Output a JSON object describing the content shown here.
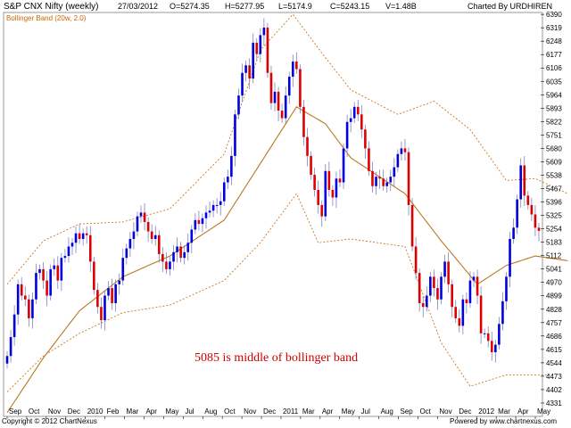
{
  "header": {
    "symbol": "S&P CNX Nifty (weekly)",
    "date": "27/03/2012",
    "open": "O=5274.35",
    "high": "H=5277.95",
    "low": "L=5174.9",
    "close": "C=5243.15",
    "volume": "V=1.48B",
    "charted_by": "Charted By URDHIREN"
  },
  "legend": {
    "label": "Bollinger Band (20w, 2.0)"
  },
  "annotation": "5085 is middle of bollinger band",
  "footer": {
    "copyright": "Copyright © 2012 ChartNexus",
    "powered": "Powered by www.chartnexus.com"
  },
  "colors": {
    "up": "#0000dd",
    "down": "#dd0000",
    "band": "#cc7722",
    "middle": "#bb7722",
    "annotation": "#d00000"
  },
  "chart_data": {
    "type": "candlestick",
    "ylim": [
      4260,
      6400
    ],
    "yticks": [
      4331,
      4402,
      4473,
      4544,
      4615,
      4686,
      4757,
      4828,
      4899,
      4970,
      5041,
      5112,
      5183,
      5254,
      5325,
      5396,
      5467,
      5538,
      5609,
      5680,
      5751,
      5822,
      5893,
      5964,
      6035,
      6106,
      6177,
      6248,
      6319,
      6390
    ],
    "xticks": [
      "Sep",
      "Oct",
      "Nov",
      "Dec",
      "2010",
      "Feb",
      "Mar",
      "Apr",
      "May",
      "Jul",
      "Aug",
      "Oct",
      "Nov",
      "Dec",
      "2011",
      "Mar",
      "Apr",
      "May",
      "Jul",
      "Aug",
      "Sep",
      "Oct",
      "Nov",
      "Dec",
      "2012",
      "Mar",
      "Apr",
      "May"
    ],
    "close_approx": [
      4580,
      4680,
      4800,
      4960,
      4900,
      4880,
      4780,
      4880,
      5020,
      5040,
      4980,
      4900,
      5040,
      5060,
      4980,
      5100,
      5110,
      5160,
      5180,
      5230,
      5200,
      5230,
      5220,
      5080,
      4930,
      4840,
      4770,
      4900,
      4940,
      4860,
      4960,
      4980,
      5100,
      5150,
      5200,
      5240,
      5320,
      5340,
      5290,
      5240,
      5200,
      5220,
      5120,
      5080,
      5040,
      5080,
      5130,
      5160,
      5100,
      5130,
      5180,
      5250,
      5300,
      5280,
      5310,
      5340,
      5350,
      5380,
      5380,
      5400,
      5500,
      5530,
      5640,
      5860,
      5960,
      6080,
      6120,
      6050,
      6240,
      6180,
      6280,
      6320,
      6080,
      5920,
      5980,
      5880,
      5840,
      5960,
      6060,
      6140,
      6100,
      5900,
      5740,
      5640,
      5540,
      5460,
      5380,
      5320,
      5560,
      5460,
      5420,
      5520,
      5500,
      5680,
      5820,
      5840,
      5900,
      5860,
      5780,
      5680,
      5560,
      5480,
      5530,
      5520,
      5480,
      5500,
      5530,
      5580,
      5650,
      5680,
      5660,
      5380,
      5160,
      5020,
      4860,
      4840,
      4900,
      5000,
      4940,
      4880,
      5000,
      5080,
      4960,
      4840,
      4780,
      4740,
      4880,
      4860,
      4980,
      5000,
      4900,
      4700,
      4700,
      4660,
      4600,
      4640,
      4750,
      4870,
      5000,
      5200,
      5260,
      5410,
      5590,
      5430,
      5380,
      5330,
      5260,
      5243
    ],
    "bb_upper_approx": [
      [
        0,
        4960
      ],
      [
        10,
        5190
      ],
      [
        20,
        5280
      ],
      [
        32,
        5290
      ],
      [
        45,
        5360
      ],
      [
        60,
        5650
      ],
      [
        70,
        6200
      ],
      [
        79,
        6390
      ],
      [
        88,
        6160
      ],
      [
        95,
        5990
      ],
      [
        108,
        5860
      ],
      [
        118,
        5930
      ],
      [
        128,
        5780
      ],
      [
        138,
        5510
      ],
      [
        146,
        5520
      ],
      [
        155,
        5440
      ]
    ],
    "bb_middle_approx": [
      [
        0,
        4280
      ],
      [
        10,
        4570
      ],
      [
        20,
        4820
      ],
      [
        32,
        5000
      ],
      [
        45,
        5110
      ],
      [
        60,
        5300
      ],
      [
        70,
        5600
      ],
      [
        80,
        5900
      ],
      [
        88,
        5810
      ],
      [
        95,
        5630
      ],
      [
        110,
        5440
      ],
      [
        120,
        5190
      ],
      [
        130,
        4960
      ],
      [
        138,
        5060
      ],
      [
        146,
        5110
      ],
      [
        155,
        5085
      ]
    ],
    "bb_lower_approx": [
      [
        0,
        4390
      ],
      [
        10,
        4580
      ],
      [
        20,
        4700
      ],
      [
        32,
        4810
      ],
      [
        45,
        4850
      ],
      [
        60,
        4980
      ],
      [
        70,
        5180
      ],
      [
        80,
        5440
      ],
      [
        86,
        5180
      ],
      [
        95,
        5200
      ],
      [
        110,
        5160
      ],
      [
        120,
        4650
      ],
      [
        128,
        4420
      ],
      [
        138,
        4480
      ],
      [
        150,
        4480
      ]
    ]
  }
}
